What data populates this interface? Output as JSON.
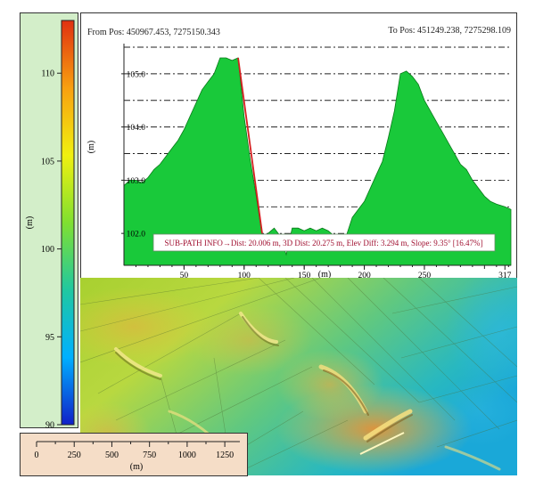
{
  "colorbar": {
    "label": "(m)",
    "range": [
      90,
      113
    ],
    "ticks": [
      110,
      105,
      100,
      95,
      90
    ],
    "colors": [
      "#1020c8",
      "#00b0ff",
      "#20c8a0",
      "#80e030",
      "#f0f010",
      "#f8a010",
      "#e03010"
    ]
  },
  "scalebar": {
    "ticks": [
      0,
      250,
      500,
      750,
      1000,
      1250
    ],
    "unit": "(m)"
  },
  "header": {
    "from_pos": "From Pos: 450967.453, 7275150.343",
    "to_pos": "To Pos: 451249.238, 7275298.109"
  },
  "info_box": "SUB-PATH INFO→Dist: 20.006 m, 3D Dist: 20.275 m, Elev Diff: 3.294 m, Slope: 9.35° [16.47%]",
  "colors": {
    "profile_fill": "#19c93a",
    "profile_stroke": "#0a7a1a",
    "subpath": "#d42020",
    "info_text": "#a01030"
  },
  "chart_data": {
    "type": "area",
    "xlabel": "(m)",
    "ylabel": "(m)",
    "xlim": [
      0,
      322
    ],
    "ylim": [
      101.4,
      105.5
    ],
    "xticks": [
      50,
      100,
      150,
      200,
      250,
      317
    ],
    "yticks": [
      102.0,
      103.0,
      104.0,
      105.0
    ],
    "grid": "horizontal dash-dot",
    "x": [
      0,
      5,
      10,
      15,
      20,
      25,
      30,
      35,
      40,
      45,
      50,
      55,
      60,
      65,
      70,
      75,
      80,
      85,
      90,
      95,
      100,
      105,
      110,
      115,
      120,
      125,
      130,
      135,
      140,
      145,
      150,
      155,
      160,
      165,
      170,
      175,
      180,
      185,
      190,
      195,
      200,
      205,
      210,
      215,
      220,
      225,
      230,
      235,
      240,
      245,
      250,
      255,
      260,
      265,
      270,
      275,
      280,
      285,
      290,
      295,
      300,
      305,
      310,
      317,
      322
    ],
    "y": [
      102.9,
      103.0,
      103.0,
      102.95,
      103.05,
      103.2,
      103.3,
      103.45,
      103.6,
      103.75,
      103.95,
      104.2,
      104.45,
      104.7,
      104.85,
      105.0,
      105.3,
      105.3,
      105.25,
      105.3,
      104.2,
      103.4,
      102.7,
      101.95,
      102.0,
      102.1,
      101.95,
      101.6,
      102.1,
      102.1,
      102.05,
      102.1,
      102.05,
      102.1,
      102.05,
      101.95,
      101.7,
      101.95,
      102.3,
      102.45,
      102.6,
      102.85,
      103.1,
      103.35,
      103.8,
      104.3,
      105.0,
      105.05,
      104.95,
      104.8,
      104.5,
      104.3,
      104.1,
      103.9,
      103.7,
      103.5,
      103.3,
      103.2,
      103.0,
      102.85,
      102.7,
      102.6,
      102.55,
      102.5,
      102.45
    ],
    "subpath": {
      "x": [
        95,
        115
      ],
      "y": [
        105.3,
        102.0
      ]
    }
  }
}
